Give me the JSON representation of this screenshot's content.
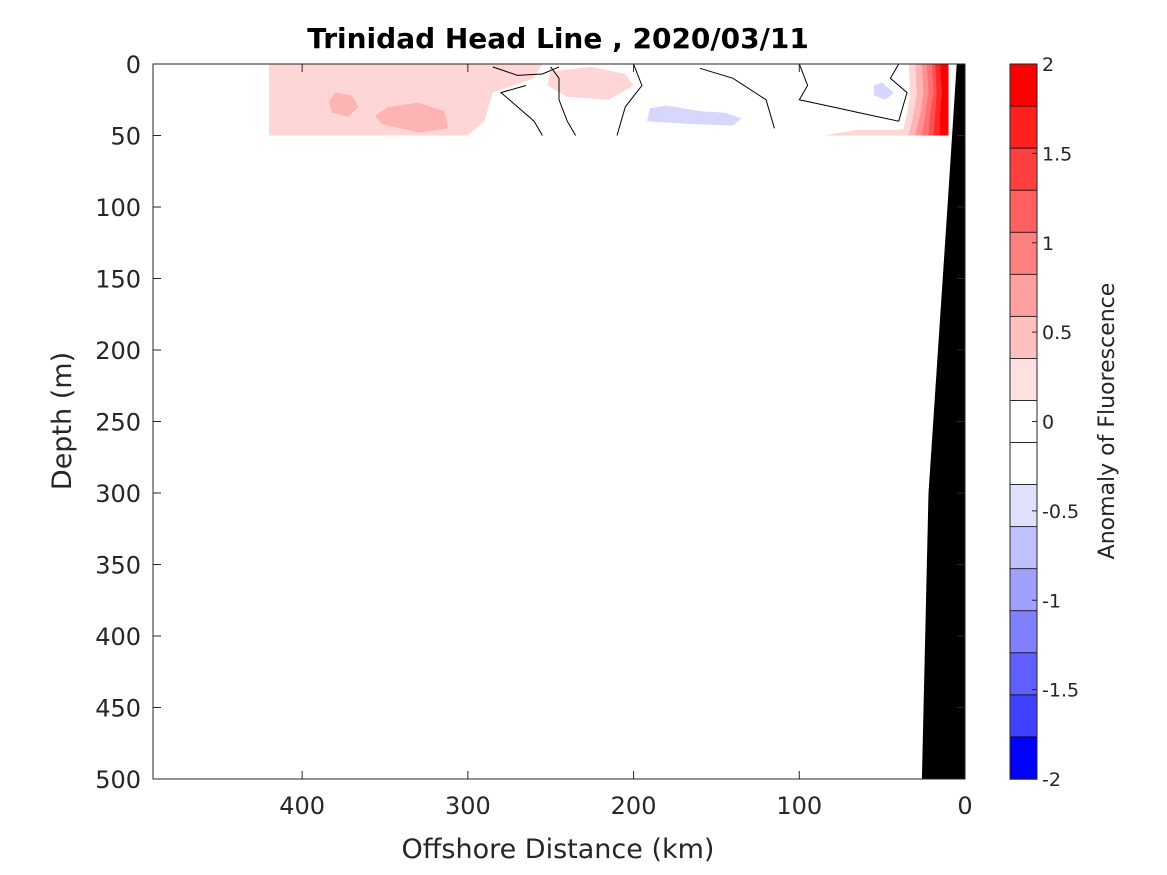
{
  "chart_data": {
    "type": "heatmap",
    "title": "Trinidad Head Line , 2020/03/11",
    "xlabel": "Offshore Distance (km)",
    "ylabel": "Depth (m)",
    "xlim": [
      490,
      0
    ],
    "ylim": [
      0,
      500
    ],
    "x_reversed": true,
    "y_reversed": true,
    "x_ticks": [
      400,
      300,
      200,
      100,
      0
    ],
    "y_ticks": [
      0,
      50,
      100,
      150,
      200,
      250,
      300,
      350,
      400,
      450,
      500
    ],
    "colorbar": {
      "label": "Anomaly of Fluorescence",
      "range": [
        -2,
        2
      ],
      "ticks": [
        2,
        1.5,
        1,
        0.5,
        0,
        -0.5,
        -1,
        -1.5,
        -2
      ],
      "levels": [
        2,
        1.75,
        1.5,
        1.25,
        1,
        0.75,
        0.5,
        0.25,
        0,
        -0.25,
        -0.5,
        -0.75,
        -1,
        -1.25,
        -1.5,
        -1.75,
        -2
      ],
      "colors": [
        "#ff0000",
        "#ff2020",
        "#ff4040",
        "#ff6060",
        "#ff8080",
        "#ffa0a0",
        "#ffc0c0",
        "#ffe0e0",
        "#ffffff",
        "#ffffff",
        "#e0e0ff",
        "#c0c0ff",
        "#a0a0ff",
        "#8080ff",
        "#6060ff",
        "#4040ff",
        "#0000ff"
      ]
    },
    "data_depth_range": [
      0,
      50
    ],
    "data_distance_range": [
      420,
      10
    ],
    "regions": [
      {
        "name": "positive anomaly band offshore",
        "value": 0.375,
        "color": "#ffd6d6",
        "points": [
          [
            420,
            0
          ],
          [
            255,
            0
          ],
          [
            260,
            10
          ],
          [
            285,
            20
          ],
          [
            290,
            40
          ],
          [
            300,
            50
          ],
          [
            420,
            50
          ],
          [
            420,
            45
          ]
        ]
      },
      {
        "name": "positive anomaly patch",
        "value": 0.625,
        "color": "#ffb4b4",
        "points": [
          [
            380,
            20
          ],
          [
            370,
            22
          ],
          [
            366,
            30
          ],
          [
            372,
            37
          ],
          [
            382,
            34
          ],
          [
            384,
            26
          ]
        ]
      },
      {
        "name": "positive anomaly patch",
        "value": 0.625,
        "color": "#ffb4b4",
        "points": [
          [
            348,
            30
          ],
          [
            330,
            27
          ],
          [
            314,
            33
          ],
          [
            312,
            45
          ],
          [
            330,
            48
          ],
          [
            352,
            42
          ],
          [
            356,
            36
          ]
        ]
      },
      {
        "name": "positive anomaly patch",
        "value": 0.375,
        "color": "#ffd6d6",
        "points": [
          [
            250,
            5
          ],
          [
            225,
            2
          ],
          [
            205,
            7
          ],
          [
            200,
            15
          ],
          [
            215,
            25
          ],
          [
            240,
            23
          ],
          [
            252,
            15
          ]
        ]
      },
      {
        "name": "negative anomaly patch",
        "value": -0.375,
        "color": "#d6d6ff",
        "points": [
          [
            190,
            31
          ],
          [
            180,
            29
          ],
          [
            160,
            33
          ],
          [
            145,
            34
          ],
          [
            135,
            38
          ],
          [
            140,
            43
          ],
          [
            165,
            42
          ],
          [
            192,
            40
          ]
        ]
      },
      {
        "name": "negative anomaly patch",
        "value": -0.375,
        "color": "#d6d6ff",
        "points": [
          [
            55,
            15
          ],
          [
            50,
            13
          ],
          [
            43,
            20
          ],
          [
            48,
            25
          ],
          [
            55,
            22
          ]
        ]
      },
      {
        "name": "positive anomaly bottom near coast",
        "value": 0.375,
        "color": "#ffd6d6",
        "points": [
          [
            85,
            50
          ],
          [
            65,
            46
          ],
          [
            40,
            46
          ],
          [
            25,
            44
          ],
          [
            20,
            50
          ]
        ]
      }
    ],
    "coastal_bands": [
      {
        "value": 0.375,
        "color": "#ffd6d6",
        "points": [
          [
            34,
            0
          ],
          [
            10,
            0
          ],
          [
            10,
            50
          ],
          [
            38,
            50
          ],
          [
            35,
            35
          ],
          [
            33,
            20
          ]
        ]
      },
      {
        "value": 0.625,
        "color": "#ffb4b4",
        "points": [
          [
            30,
            0
          ],
          [
            10,
            0
          ],
          [
            10,
            50
          ],
          [
            34,
            50
          ],
          [
            31,
            35
          ],
          [
            29,
            20
          ]
        ]
      },
      {
        "value": 0.875,
        "color": "#ff9090",
        "points": [
          [
            26,
            0
          ],
          [
            10,
            0
          ],
          [
            10,
            50
          ],
          [
            30,
            50
          ],
          [
            27,
            35
          ],
          [
            25,
            20
          ]
        ]
      },
      {
        "value": 1.125,
        "color": "#ff7070",
        "points": [
          [
            23,
            0
          ],
          [
            10,
            0
          ],
          [
            10,
            50
          ],
          [
            26,
            50
          ],
          [
            24,
            35
          ],
          [
            22,
            20
          ]
        ]
      },
      {
        "value": 1.375,
        "color": "#ff5050",
        "points": [
          [
            20,
            0
          ],
          [
            10,
            0
          ],
          [
            10,
            50
          ],
          [
            22,
            50
          ],
          [
            21,
            35
          ],
          [
            19,
            20
          ]
        ]
      },
      {
        "value": 1.625,
        "color": "#ff2828",
        "points": [
          [
            18,
            0
          ],
          [
            10,
            0
          ],
          [
            10,
            50
          ],
          [
            19,
            50
          ],
          [
            18,
            35
          ],
          [
            17,
            20
          ]
        ]
      },
      {
        "value": 1.875,
        "color": "#ff0000",
        "points": [
          [
            15,
            0
          ],
          [
            10,
            0
          ],
          [
            10,
            50
          ],
          [
            15,
            50
          ],
          [
            15,
            35
          ],
          [
            14,
            20
          ]
        ]
      }
    ],
    "contours": [
      {
        "value": 0,
        "points": [
          [
            285,
            2
          ],
          [
            270,
            8
          ],
          [
            255,
            7
          ],
          [
            245,
            2
          ]
        ]
      },
      {
        "value": 0,
        "points": [
          [
            265,
            15
          ],
          [
            280,
            20
          ],
          [
            270,
            30
          ],
          [
            260,
            40
          ],
          [
            255,
            50
          ]
        ]
      },
      {
        "value": 0,
        "points": [
          [
            250,
            2
          ],
          [
            245,
            10
          ],
          [
            245,
            25
          ],
          [
            240,
            40
          ],
          [
            235,
            50
          ]
        ]
      },
      {
        "value": 0,
        "points": [
          [
            200,
            0
          ],
          [
            195,
            15
          ],
          [
            205,
            30
          ],
          [
            210,
            50
          ]
        ]
      },
      {
        "value": 0,
        "points": [
          [
            160,
            3
          ],
          [
            140,
            10
          ],
          [
            120,
            25
          ],
          [
            115,
            45
          ]
        ]
      },
      {
        "value": 0,
        "points": [
          [
            100,
            0
          ],
          [
            95,
            15
          ],
          [
            100,
            25
          ],
          [
            80,
            30
          ],
          [
            60,
            35
          ],
          [
            40,
            40
          ],
          [
            35,
            20
          ],
          [
            45,
            10
          ],
          [
            40,
            0
          ]
        ]
      }
    ],
    "seafloor": {
      "name": "bathymetry",
      "color": "#000000",
      "points": [
        [
          0,
          0
        ],
        [
          5,
          0
        ],
        [
          10,
          90
        ],
        [
          22,
          300
        ],
        [
          26,
          500
        ],
        [
          0,
          500
        ]
      ]
    }
  }
}
